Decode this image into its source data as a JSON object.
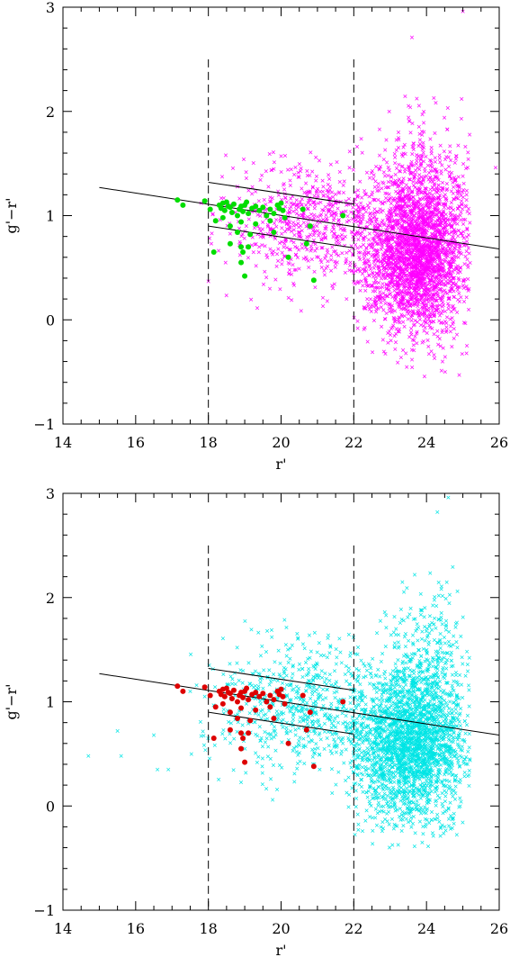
{
  "chart_data": [
    {
      "type": "scatter",
      "xlabel": "r'",
      "ylabel": "g'−r'",
      "xlim": [
        14,
        26
      ],
      "ylim": [
        -1,
        3
      ],
      "x_ticks": [
        14,
        16,
        18,
        20,
        22,
        24,
        26
      ],
      "y_ticks": [
        -1,
        0,
        1,
        2,
        3
      ],
      "x_tick_labels": [
        "14",
        "16",
        "18",
        "20",
        "22",
        "24",
        "26"
      ],
      "y_tick_labels": [
        "−1",
        "0",
        "1",
        "2",
        "3"
      ],
      "colors": {
        "field": "#ff00ff",
        "members": "#00dd00"
      },
      "vlines": [
        18,
        22
      ],
      "lines": [
        {
          "x": [
            15,
            26
          ],
          "y": [
            1.27,
            0.68
          ]
        },
        {
          "x": [
            18,
            22
          ],
          "y": [
            1.32,
            1.11
          ]
        },
        {
          "x": [
            18,
            22
          ],
          "y": [
            0.9,
            0.69
          ]
        }
      ],
      "series": [
        {
          "marker": "x",
          "clusters": [
            {
              "n": 2600,
              "cx": 23.7,
              "cy": 0.65,
              "sx": 0.75,
              "sy": 0.38,
              "xmin": 22.0,
              "xmax": 25.2,
              "ymin": -0.55,
              "ymax": 2.4
            },
            {
              "n": 600,
              "cx": 21.0,
              "cy": 0.95,
              "sx": 1.3,
              "sy": 0.3,
              "xmin": 18.0,
              "xmax": 22.3,
              "ymin": -0.1,
              "ymax": 1.8
            },
            {
              "n": 220,
              "cx": 24.0,
              "cy": 1.35,
              "sx": 0.55,
              "sy": 0.35,
              "xmin": 22.0,
              "xmax": 25.2,
              "ymin": 0.8,
              "ymax": 2.35
            }
          ],
          "points": [
            {
              "x": 25.0,
              "y": 2.96
            },
            {
              "x": 23.6,
              "y": 2.71
            },
            {
              "x": 24.9,
              "y": -0.53
            },
            {
              "x": 25.9,
              "y": 1.46
            },
            {
              "x": 18.0,
              "y": 0.37
            },
            {
              "x": 17.8,
              "y": 1.12
            }
          ]
        },
        {
          "marker": "dot",
          "points": [
            {
              "x": 17.15,
              "y": 1.15
            },
            {
              "x": 17.3,
              "y": 1.1
            },
            {
              "x": 17.9,
              "y": 1.14
            },
            {
              "x": 18.05,
              "y": 1.06
            },
            {
              "x": 18.3,
              "y": 1.1
            },
            {
              "x": 18.35,
              "y": 1.07
            },
            {
              "x": 18.4,
              "y": 1.12
            },
            {
              "x": 18.45,
              "y": 1.05
            },
            {
              "x": 18.5,
              "y": 1.13
            },
            {
              "x": 18.55,
              "y": 1.09
            },
            {
              "x": 18.6,
              "y": 1.08
            },
            {
              "x": 18.65,
              "y": 1.03
            },
            {
              "x": 18.7,
              "y": 1.11
            },
            {
              "x": 18.8,
              "y": 1.0
            },
            {
              "x": 18.85,
              "y": 1.06
            },
            {
              "x": 18.9,
              "y": 1.09
            },
            {
              "x": 18.95,
              "y": 1.04
            },
            {
              "x": 19.0,
              "y": 1.1
            },
            {
              "x": 19.05,
              "y": 1.13
            },
            {
              "x": 19.1,
              "y": 1.02
            },
            {
              "x": 19.2,
              "y": 1.07
            },
            {
              "x": 19.3,
              "y": 1.09
            },
            {
              "x": 19.4,
              "y": 1.05
            },
            {
              "x": 19.5,
              "y": 1.08
            },
            {
              "x": 19.6,
              "y": 1.0
            },
            {
              "x": 19.7,
              "y": 1.06
            },
            {
              "x": 19.8,
              "y": 1.02
            },
            {
              "x": 19.9,
              "y": 1.1
            },
            {
              "x": 19.95,
              "y": 1.07
            },
            {
              "x": 20.0,
              "y": 1.12
            },
            {
              "x": 20.05,
              "y": 1.05
            },
            {
              "x": 18.2,
              "y": 0.95
            },
            {
              "x": 18.4,
              "y": 0.98
            },
            {
              "x": 18.6,
              "y": 0.9
            },
            {
              "x": 18.9,
              "y": 0.94
            },
            {
              "x": 19.3,
              "y": 0.92
            },
            {
              "x": 19.7,
              "y": 0.95
            },
            {
              "x": 20.1,
              "y": 0.98
            },
            {
              "x": 20.6,
              "y": 1.06
            },
            {
              "x": 20.8,
              "y": 0.9
            },
            {
              "x": 21.7,
              "y": 1.0
            },
            {
              "x": 18.8,
              "y": 0.84
            },
            {
              "x": 19.15,
              "y": 0.82
            },
            {
              "x": 19.8,
              "y": 0.84
            },
            {
              "x": 18.6,
              "y": 0.73
            },
            {
              "x": 18.9,
              "y": 0.7
            },
            {
              "x": 19.1,
              "y": 0.7
            },
            {
              "x": 20.7,
              "y": 0.73
            },
            {
              "x": 18.15,
              "y": 0.65
            },
            {
              "x": 18.95,
              "y": 0.65
            },
            {
              "x": 20.2,
              "y": 0.6
            },
            {
              "x": 18.9,
              "y": 0.55
            },
            {
              "x": 19.0,
              "y": 0.42
            },
            {
              "x": 20.9,
              "y": 0.38
            }
          ]
        }
      ]
    },
    {
      "type": "scatter",
      "xlabel": "r'",
      "ylabel": "g'−r'",
      "xlim": [
        14,
        26
      ],
      "ylim": [
        -1,
        3
      ],
      "x_ticks": [
        14,
        16,
        18,
        20,
        22,
        24,
        26
      ],
      "y_ticks": [
        -1,
        0,
        1,
        2,
        3
      ],
      "x_tick_labels": [
        "14",
        "16",
        "18",
        "20",
        "22",
        "24",
        "26"
      ],
      "y_tick_labels": [
        "−1",
        "0",
        "1",
        "2",
        "3"
      ],
      "colors": {
        "field": "#00e5e5",
        "members": "#dd0000"
      },
      "vlines": [
        18,
        22
      ],
      "lines": [
        {
          "x": [
            15,
            26
          ],
          "y": [
            1.27,
            0.68
          ]
        },
        {
          "x": [
            18,
            22
          ],
          "y": [
            1.32,
            1.11
          ]
        },
        {
          "x": [
            18,
            22
          ],
          "y": [
            0.9,
            0.69
          ]
        }
      ],
      "series": [
        {
          "marker": "x",
          "clusters": [
            {
              "n": 2400,
              "cx": 23.6,
              "cy": 0.6,
              "sx": 0.8,
              "sy": 0.38,
              "xmin": 21.8,
              "xmax": 25.2,
              "ymin": -0.4,
              "ymax": 2.4
            },
            {
              "n": 650,
              "cx": 20.8,
              "cy": 0.95,
              "sx": 1.4,
              "sy": 0.32,
              "xmin": 17.5,
              "xmax": 22.3,
              "ymin": -0.1,
              "ymax": 1.8
            },
            {
              "n": 250,
              "cx": 24.0,
              "cy": 1.35,
              "sx": 0.55,
              "sy": 0.38,
              "xmin": 22.0,
              "xmax": 25.2,
              "ymin": 0.8,
              "ymax": 2.45
            }
          ],
          "points": [
            {
              "x": 24.6,
              "y": 2.96
            },
            {
              "x": 24.3,
              "y": 2.82
            },
            {
              "x": 14.7,
              "y": 0.48
            },
            {
              "x": 15.5,
              "y": 0.72
            },
            {
              "x": 15.6,
              "y": 0.48
            },
            {
              "x": 16.5,
              "y": 0.68
            },
            {
              "x": 16.6,
              "y": 0.35
            },
            {
              "x": 16.9,
              "y": 0.35
            },
            {
              "x": 17.5,
              "y": 1.1
            },
            {
              "x": 17.9,
              "y": 1.05
            }
          ]
        },
        {
          "marker": "dot",
          "points": [
            {
              "x": 17.15,
              "y": 1.15
            },
            {
              "x": 17.3,
              "y": 1.1
            },
            {
              "x": 17.9,
              "y": 1.14
            },
            {
              "x": 18.05,
              "y": 1.06
            },
            {
              "x": 18.3,
              "y": 1.1
            },
            {
              "x": 18.35,
              "y": 1.07
            },
            {
              "x": 18.4,
              "y": 1.12
            },
            {
              "x": 18.45,
              "y": 1.05
            },
            {
              "x": 18.5,
              "y": 1.13
            },
            {
              "x": 18.55,
              "y": 1.09
            },
            {
              "x": 18.6,
              "y": 1.08
            },
            {
              "x": 18.65,
              "y": 1.03
            },
            {
              "x": 18.7,
              "y": 1.11
            },
            {
              "x": 18.8,
              "y": 1.0
            },
            {
              "x": 18.85,
              "y": 1.06
            },
            {
              "x": 18.9,
              "y": 1.09
            },
            {
              "x": 18.95,
              "y": 1.04
            },
            {
              "x": 19.0,
              "y": 1.1
            },
            {
              "x": 19.05,
              "y": 1.13
            },
            {
              "x": 19.1,
              "y": 1.02
            },
            {
              "x": 19.2,
              "y": 1.07
            },
            {
              "x": 19.3,
              "y": 1.09
            },
            {
              "x": 19.4,
              "y": 1.05
            },
            {
              "x": 19.5,
              "y": 1.08
            },
            {
              "x": 19.6,
              "y": 1.0
            },
            {
              "x": 19.7,
              "y": 1.06
            },
            {
              "x": 19.8,
              "y": 1.02
            },
            {
              "x": 19.9,
              "y": 1.1
            },
            {
              "x": 19.95,
              "y": 1.07
            },
            {
              "x": 20.0,
              "y": 1.12
            },
            {
              "x": 20.05,
              "y": 1.05
            },
            {
              "x": 18.2,
              "y": 0.95
            },
            {
              "x": 18.4,
              "y": 0.98
            },
            {
              "x": 18.6,
              "y": 0.9
            },
            {
              "x": 18.9,
              "y": 0.94
            },
            {
              "x": 19.3,
              "y": 0.92
            },
            {
              "x": 19.7,
              "y": 0.95
            },
            {
              "x": 20.1,
              "y": 0.98
            },
            {
              "x": 20.6,
              "y": 1.06
            },
            {
              "x": 20.8,
              "y": 0.9
            },
            {
              "x": 21.7,
              "y": 1.0
            },
            {
              "x": 18.8,
              "y": 0.84
            },
            {
              "x": 19.15,
              "y": 0.82
            },
            {
              "x": 19.8,
              "y": 0.84
            },
            {
              "x": 18.6,
              "y": 0.73
            },
            {
              "x": 18.9,
              "y": 0.7
            },
            {
              "x": 19.1,
              "y": 0.7
            },
            {
              "x": 20.7,
              "y": 0.73
            },
            {
              "x": 18.15,
              "y": 0.65
            },
            {
              "x": 18.95,
              "y": 0.65
            },
            {
              "x": 20.2,
              "y": 0.6
            },
            {
              "x": 18.9,
              "y": 0.55
            },
            {
              "x": 19.0,
              "y": 0.42
            },
            {
              "x": 20.9,
              "y": 0.38
            }
          ]
        }
      ]
    }
  ]
}
